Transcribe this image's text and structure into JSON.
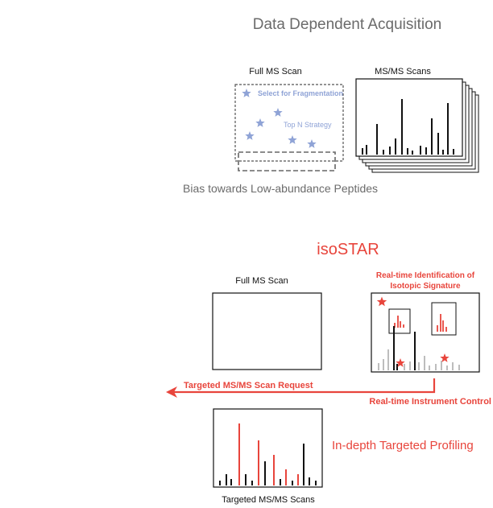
{
  "dda": {
    "title": "Data Dependent Acquisition",
    "full_ms_label": "Full MS Scan",
    "msms_label": "MS/MS Scans",
    "select_label": "Select for Fragmentation",
    "topn_label": "Top N Strategy",
    "bias_label": "Bias towards Low-abundance Peptides"
  },
  "isostar": {
    "title": "isoSTAR",
    "full_ms_label": "Full MS Scan",
    "realtime_id_line1": "Real-time Identification of",
    "realtime_id_line2": "Isotopic Signature",
    "targeted_request": "Targeted MS/MS Scan Request",
    "instrument_control": "Real-time Instrument Control",
    "profiling_label": "In-depth Targeted Profiling",
    "targeted_scans_label": "Targeted MS/MS Scans"
  },
  "colors": {
    "accent_red": "#e8453c",
    "title_gray": "#6b6b6b",
    "star_blue": "#8fa3d6",
    "dark_text": "#111111",
    "bar_gray": "#bdbdbd"
  }
}
